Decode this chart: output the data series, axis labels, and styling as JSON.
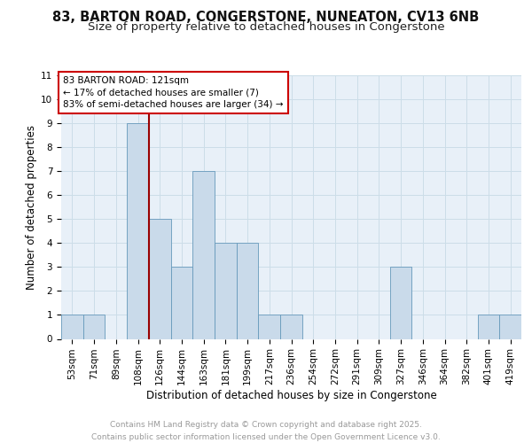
{
  "title1": "83, BARTON ROAD, CONGERSTONE, NUNEATON, CV13 6NB",
  "title2": "Size of property relative to detached houses in Congerstone",
  "xlabel": "Distribution of detached houses by size in Congerstone",
  "ylabel": "Number of detached properties",
  "categories": [
    "53sqm",
    "71sqm",
    "89sqm",
    "108sqm",
    "126sqm",
    "144sqm",
    "163sqm",
    "181sqm",
    "199sqm",
    "217sqm",
    "236sqm",
    "254sqm",
    "272sqm",
    "291sqm",
    "309sqm",
    "327sqm",
    "346sqm",
    "364sqm",
    "382sqm",
    "401sqm",
    "419sqm"
  ],
  "values": [
    1,
    1,
    0,
    9,
    5,
    3,
    7,
    4,
    4,
    1,
    1,
    0,
    0,
    0,
    0,
    3,
    0,
    0,
    0,
    1,
    1
  ],
  "bar_color": "#c9daea",
  "bar_edge_color": "#6699bb",
  "grid_color": "#ccdde8",
  "background_color": "#e8f0f8",
  "subject_line_index": 3,
  "subject_line_color": "#990000",
  "annotation_text": "83 BARTON ROAD: 121sqm\n← 17% of detached houses are smaller (7)\n83% of semi-detached houses are larger (34) →",
  "annotation_box_color": "#cc0000",
  "ylim": [
    0,
    11
  ],
  "yticks": [
    0,
    1,
    2,
    3,
    4,
    5,
    6,
    7,
    8,
    9,
    10,
    11
  ],
  "footer": "Contains HM Land Registry data © Crown copyright and database right 2025.\nContains public sector information licensed under the Open Government Licence v3.0.",
  "footer_color": "#999999",
  "title_fontsize": 10.5,
  "subtitle_fontsize": 9.5,
  "xlabel_fontsize": 8.5,
  "ylabel_fontsize": 8.5,
  "tick_fontsize": 7.5,
  "annotation_fontsize": 7.5,
  "footer_fontsize": 6.5
}
